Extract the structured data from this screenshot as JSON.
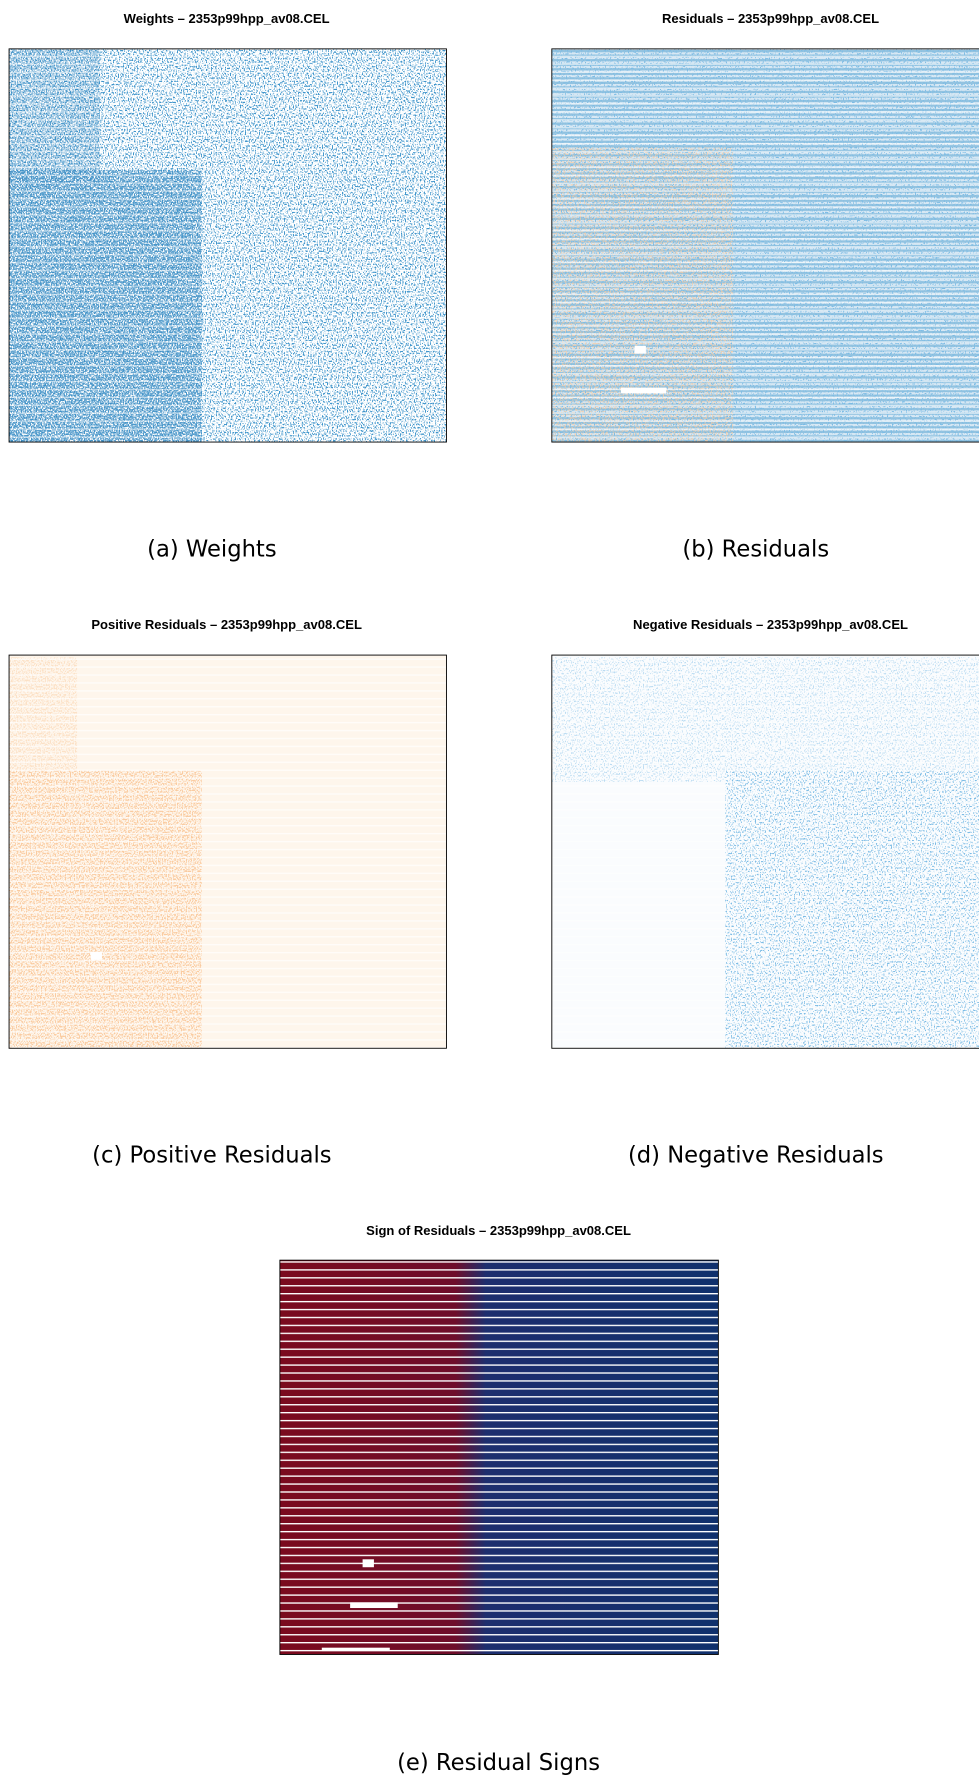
{
  "panels": [
    {
      "title": "Weights – 2353p99hpp_av08.CEL",
      "caption": "(a) Weights"
    },
    {
      "title": "Residuals – 2353p99hpp_av08.CEL",
      "caption": "(b) Residuals"
    },
    {
      "title": "Positive Residuals – 2353p99hpp_av08.CEL",
      "caption": "(c) Positive Residuals"
    },
    {
      "title": "Negative Residuals – 2353p99hpp_av08.CEL",
      "caption": "(d) Negative Residuals"
    },
    {
      "title": "Sign of Residuals – 2353p99hpp_av08.CEL",
      "caption": "(e) Residual Signs"
    }
  ]
}
